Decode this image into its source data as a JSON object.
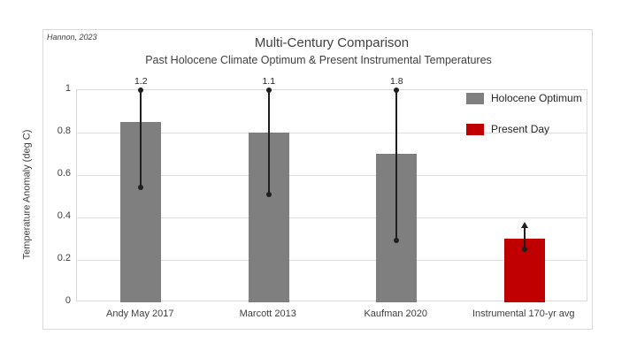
{
  "attribution": "Hannon, 2023",
  "chart_data": {
    "type": "bar",
    "title": "Multi-Century Comparison",
    "subtitle": "Past Holocene Climate Optimum & Present Instrumental Temperatures",
    "ylabel": "Temperature Anomaly (deg C)",
    "xlabel": "",
    "ylim": [
      0,
      1
    ],
    "yticks": [
      0,
      0.2,
      0.4,
      0.6,
      0.8,
      1
    ],
    "ytick_labels": [
      "0",
      "0.2",
      "0.4",
      "0.6",
      "0.8",
      "1"
    ],
    "grid": true,
    "categories": [
      "Andy May 2017",
      "Marcott 2013",
      "Kaufman 2020",
      "Instrumental 170-yr avg"
    ],
    "values": [
      0.85,
      0.8,
      0.7,
      0.3
    ],
    "error_low": [
      0.54,
      0.51,
      0.29,
      0.25
    ],
    "error_high": [
      1.2,
      1.1,
      1.8,
      0.35
    ],
    "error_high_labels": [
      "1.2",
      "1.1",
      "1.8",
      ""
    ],
    "bar_colors": [
      "#7f7f7f",
      "#7f7f7f",
      "#7f7f7f",
      "#c00000"
    ],
    "legend_position": "top-right",
    "legend": [
      {
        "label": "Holocene Optimum",
        "color": "#7f7f7f"
      },
      {
        "label": "Present Day",
        "color": "#c00000"
      }
    ],
    "colors": {
      "grid": "#e2e2e2",
      "border": "#d9d9d9",
      "error_bar": "#1f1f1f",
      "text": "#404040"
    }
  }
}
